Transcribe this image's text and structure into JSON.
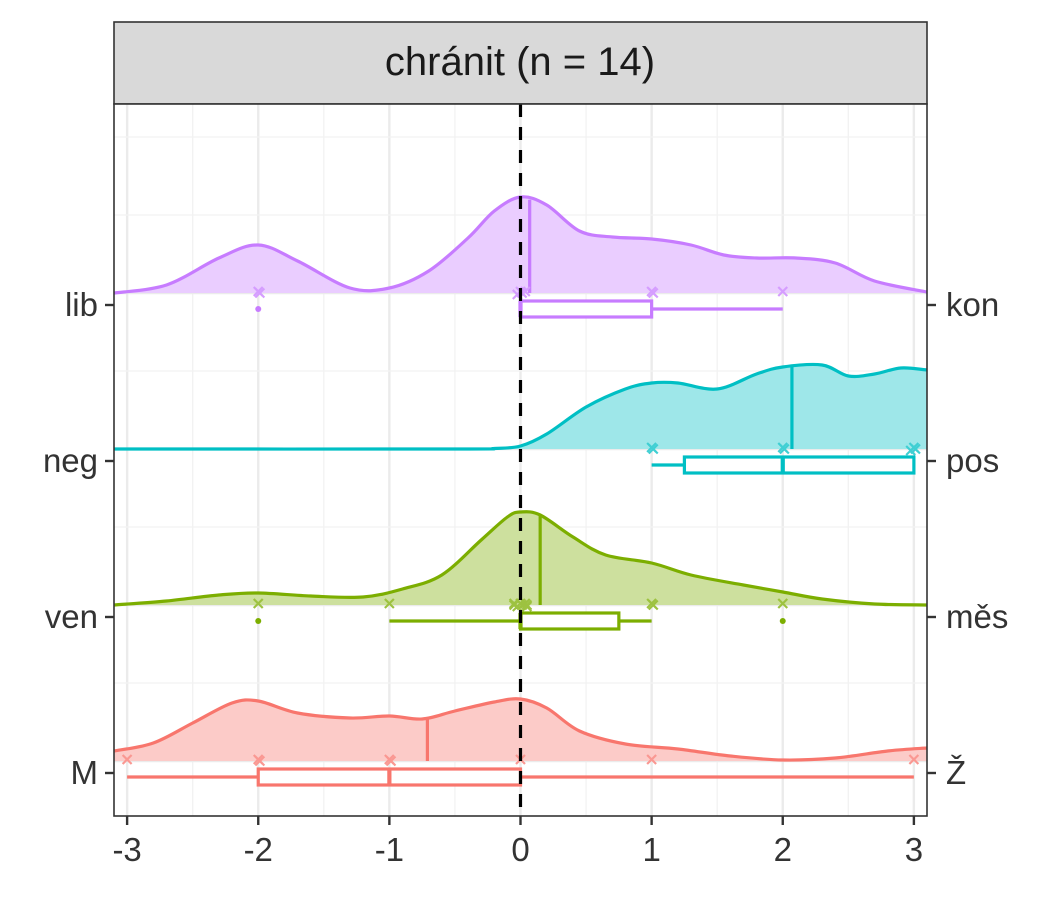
{
  "chart_data": {
    "type": "ridgeline",
    "title": "chránit (n = 14)",
    "xlabel": "",
    "ylabel": "",
    "xlim": [
      -3.1,
      3.1
    ],
    "x_ticks": [
      -3,
      -2,
      -1,
      0,
      1,
      2,
      3
    ],
    "x_tick_labels": [
      "-3",
      "-2",
      "-1",
      "0",
      "1",
      "2",
      "3"
    ],
    "reference_line_x": 0,
    "grid": true,
    "series": [
      {
        "left_label": "lib",
        "right_label": "kon",
        "color": "#C77CFF",
        "mean": 0.07,
        "points": [
          -2,
          -2,
          0,
          0,
          0,
          0,
          1,
          1,
          2
        ],
        "outliers": [
          -2
        ],
        "box": {
          "whisker_low": 0,
          "q1": 0,
          "median": 0,
          "q3": 1,
          "whisker_high": 2
        },
        "density": [
          [
            -3.1,
            0.0
          ],
          [
            -2.7,
            0.08
          ],
          [
            -2.3,
            0.35
          ],
          [
            -2.0,
            0.48
          ],
          [
            -1.7,
            0.32
          ],
          [
            -1.3,
            0.05
          ],
          [
            -1.0,
            0.05
          ],
          [
            -0.7,
            0.22
          ],
          [
            -0.4,
            0.55
          ],
          [
            -0.2,
            0.82
          ],
          [
            0.0,
            0.96
          ],
          [
            0.2,
            0.88
          ],
          [
            0.45,
            0.62
          ],
          [
            0.7,
            0.56
          ],
          [
            1.0,
            0.54
          ],
          [
            1.3,
            0.48
          ],
          [
            1.55,
            0.38
          ],
          [
            1.8,
            0.35
          ],
          [
            2.1,
            0.35
          ],
          [
            2.4,
            0.3
          ],
          [
            2.7,
            0.12
          ],
          [
            3.1,
            0.01
          ]
        ]
      },
      {
        "left_label": "neg",
        "right_label": "pos",
        "color": "#00BFC4",
        "mean": 2.07,
        "points": [
          1,
          1,
          2,
          2,
          3,
          3,
          3
        ],
        "outliers": [],
        "box": {
          "whisker_low": 1,
          "q1": 1.25,
          "median": 2,
          "q3": 3,
          "whisker_high": 3
        },
        "density": [
          [
            -3.1,
            0.0
          ],
          [
            -0.5,
            0.0
          ],
          [
            -0.2,
            0.005
          ],
          [
            0.0,
            0.03
          ],
          [
            0.2,
            0.15
          ],
          [
            0.5,
            0.42
          ],
          [
            0.8,
            0.6
          ],
          [
            1.0,
            0.66
          ],
          [
            1.2,
            0.66
          ],
          [
            1.5,
            0.6
          ],
          [
            1.8,
            0.75
          ],
          [
            2.0,
            0.82
          ],
          [
            2.3,
            0.84
          ],
          [
            2.5,
            0.73
          ],
          [
            2.7,
            0.75
          ],
          [
            2.9,
            0.81
          ],
          [
            3.1,
            0.79
          ]
        ]
      },
      {
        "left_label": "ven",
        "right_label": "měs",
        "color": "#7CAE00",
        "mean": 0.15,
        "points": [
          -2,
          -1,
          0,
          0,
          0,
          0,
          0,
          0,
          0,
          0,
          1,
          1,
          2
        ],
        "outliers": [
          -2,
          2
        ],
        "box": {
          "whisker_low": -1,
          "q1": 0,
          "median": 0,
          "q3": 0.75,
          "whisker_high": 1
        },
        "density": [
          [
            -3.1,
            0.0
          ],
          [
            -2.7,
            0.04
          ],
          [
            -2.3,
            0.1
          ],
          [
            -2.0,
            0.12
          ],
          [
            -1.6,
            0.09
          ],
          [
            -1.2,
            0.08
          ],
          [
            -0.9,
            0.16
          ],
          [
            -0.6,
            0.3
          ],
          [
            -0.3,
            0.65
          ],
          [
            -0.1,
            0.88
          ],
          [
            0.0,
            0.93
          ],
          [
            0.15,
            0.9
          ],
          [
            0.4,
            0.68
          ],
          [
            0.65,
            0.5
          ],
          [
            1.0,
            0.42
          ],
          [
            1.3,
            0.3
          ],
          [
            1.7,
            0.2
          ],
          [
            2.0,
            0.13
          ],
          [
            2.3,
            0.06
          ],
          [
            2.7,
            0.01
          ],
          [
            3.1,
            0.0
          ]
        ]
      },
      {
        "left_label": "M",
        "right_label": "Ž",
        "color": "#F8766D",
        "mean": -0.71,
        "points": [
          -3,
          -2,
          -2,
          -1,
          -1,
          0,
          1,
          3
        ],
        "outliers": [],
        "box": {
          "whisker_low": -3,
          "q1": -2,
          "median": -1,
          "q3": 0,
          "whisker_high": 3
        },
        "density": [
          [
            -3.1,
            0.1
          ],
          [
            -2.8,
            0.18
          ],
          [
            -2.5,
            0.38
          ],
          [
            -2.2,
            0.58
          ],
          [
            -2.0,
            0.6
          ],
          [
            -1.7,
            0.48
          ],
          [
            -1.3,
            0.43
          ],
          [
            -1.0,
            0.45
          ],
          [
            -0.75,
            0.42
          ],
          [
            -0.5,
            0.5
          ],
          [
            -0.2,
            0.59
          ],
          [
            0.0,
            0.62
          ],
          [
            0.2,
            0.53
          ],
          [
            0.45,
            0.3
          ],
          [
            0.8,
            0.17
          ],
          [
            1.2,
            0.12
          ],
          [
            1.6,
            0.05
          ],
          [
            2.0,
            0.01
          ],
          [
            2.4,
            0.03
          ],
          [
            2.8,
            0.1
          ],
          [
            3.1,
            0.13
          ]
        ]
      }
    ]
  }
}
